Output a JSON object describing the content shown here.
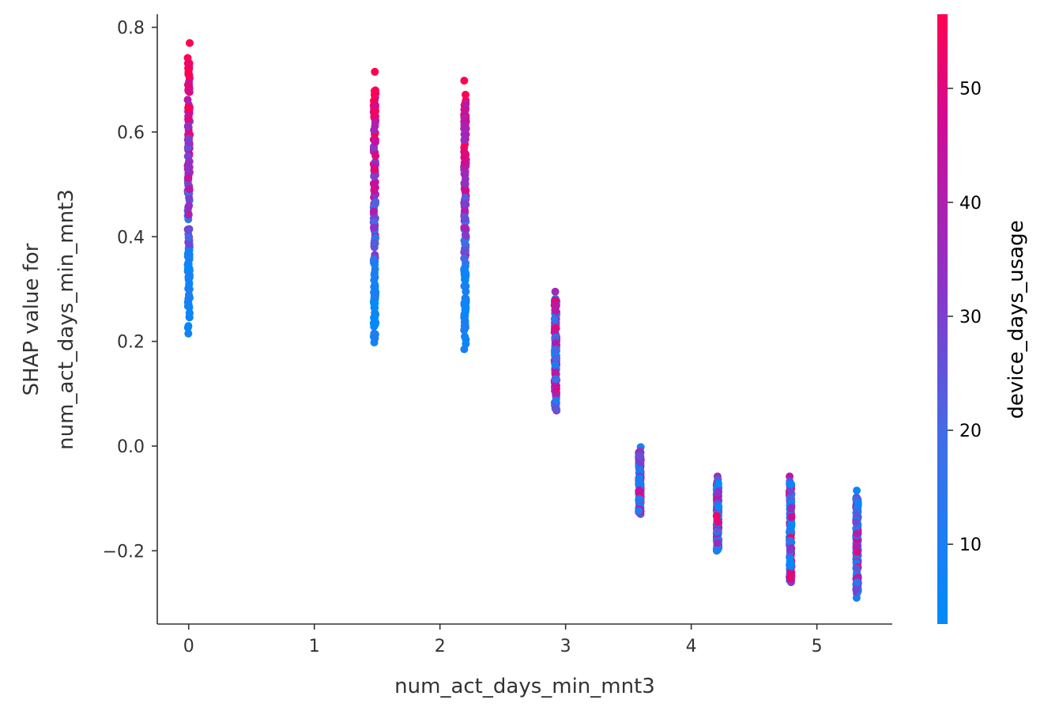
{
  "chart_data": {
    "type": "scatter",
    "title": "",
    "xlabel": "num_act_days_min_mnt3",
    "ylabel_lines": [
      "SHAP value for",
      "num_act_days_min_mnt3"
    ],
    "xlim": [
      -0.25,
      5.6
    ],
    "ylim": [
      -0.34,
      0.825
    ],
    "x_ticks": [
      0,
      1,
      2,
      3,
      4,
      5
    ],
    "x_tick_labels": [
      "0",
      "1",
      "2",
      "3",
      "4",
      "5"
    ],
    "y_ticks": [
      0.8,
      0.6,
      0.4,
      0.2,
      0.0,
      -0.2
    ],
    "y_tick_labels": [
      "0.8",
      "0.6",
      "0.4",
      "0.2",
      "0.0",
      "−0.2"
    ],
    "grid": false,
    "colorbar": {
      "label": "device_days_usage",
      "range": [
        3,
        56.5
      ],
      "ticks": [
        10,
        20,
        30,
        40,
        50
      ],
      "tick_labels": [
        "10",
        "20",
        "30",
        "40",
        "50"
      ],
      "colors": [
        "#008bfb",
        "#ff0052"
      ]
    },
    "groups": [
      {
        "x": 0.0,
        "y_min": 0.215,
        "y_max": 0.77
      },
      {
        "x": 1.48,
        "y_min": 0.198,
        "y_max": 0.715
      },
      {
        "x": 2.2,
        "y_min": 0.185,
        "y_max": 0.698
      },
      {
        "x": 2.92,
        "y_min": 0.068,
        "y_max": 0.295
      },
      {
        "x": 3.59,
        "y_min": -0.13,
        "y_max": -0.002
      },
      {
        "x": 4.21,
        "y_min": -0.2,
        "y_max": -0.058
      },
      {
        "x": 4.79,
        "y_min": -0.26,
        "y_max": -0.058
      },
      {
        "x": 5.32,
        "y_min": -0.29,
        "y_max": -0.085
      }
    ]
  }
}
